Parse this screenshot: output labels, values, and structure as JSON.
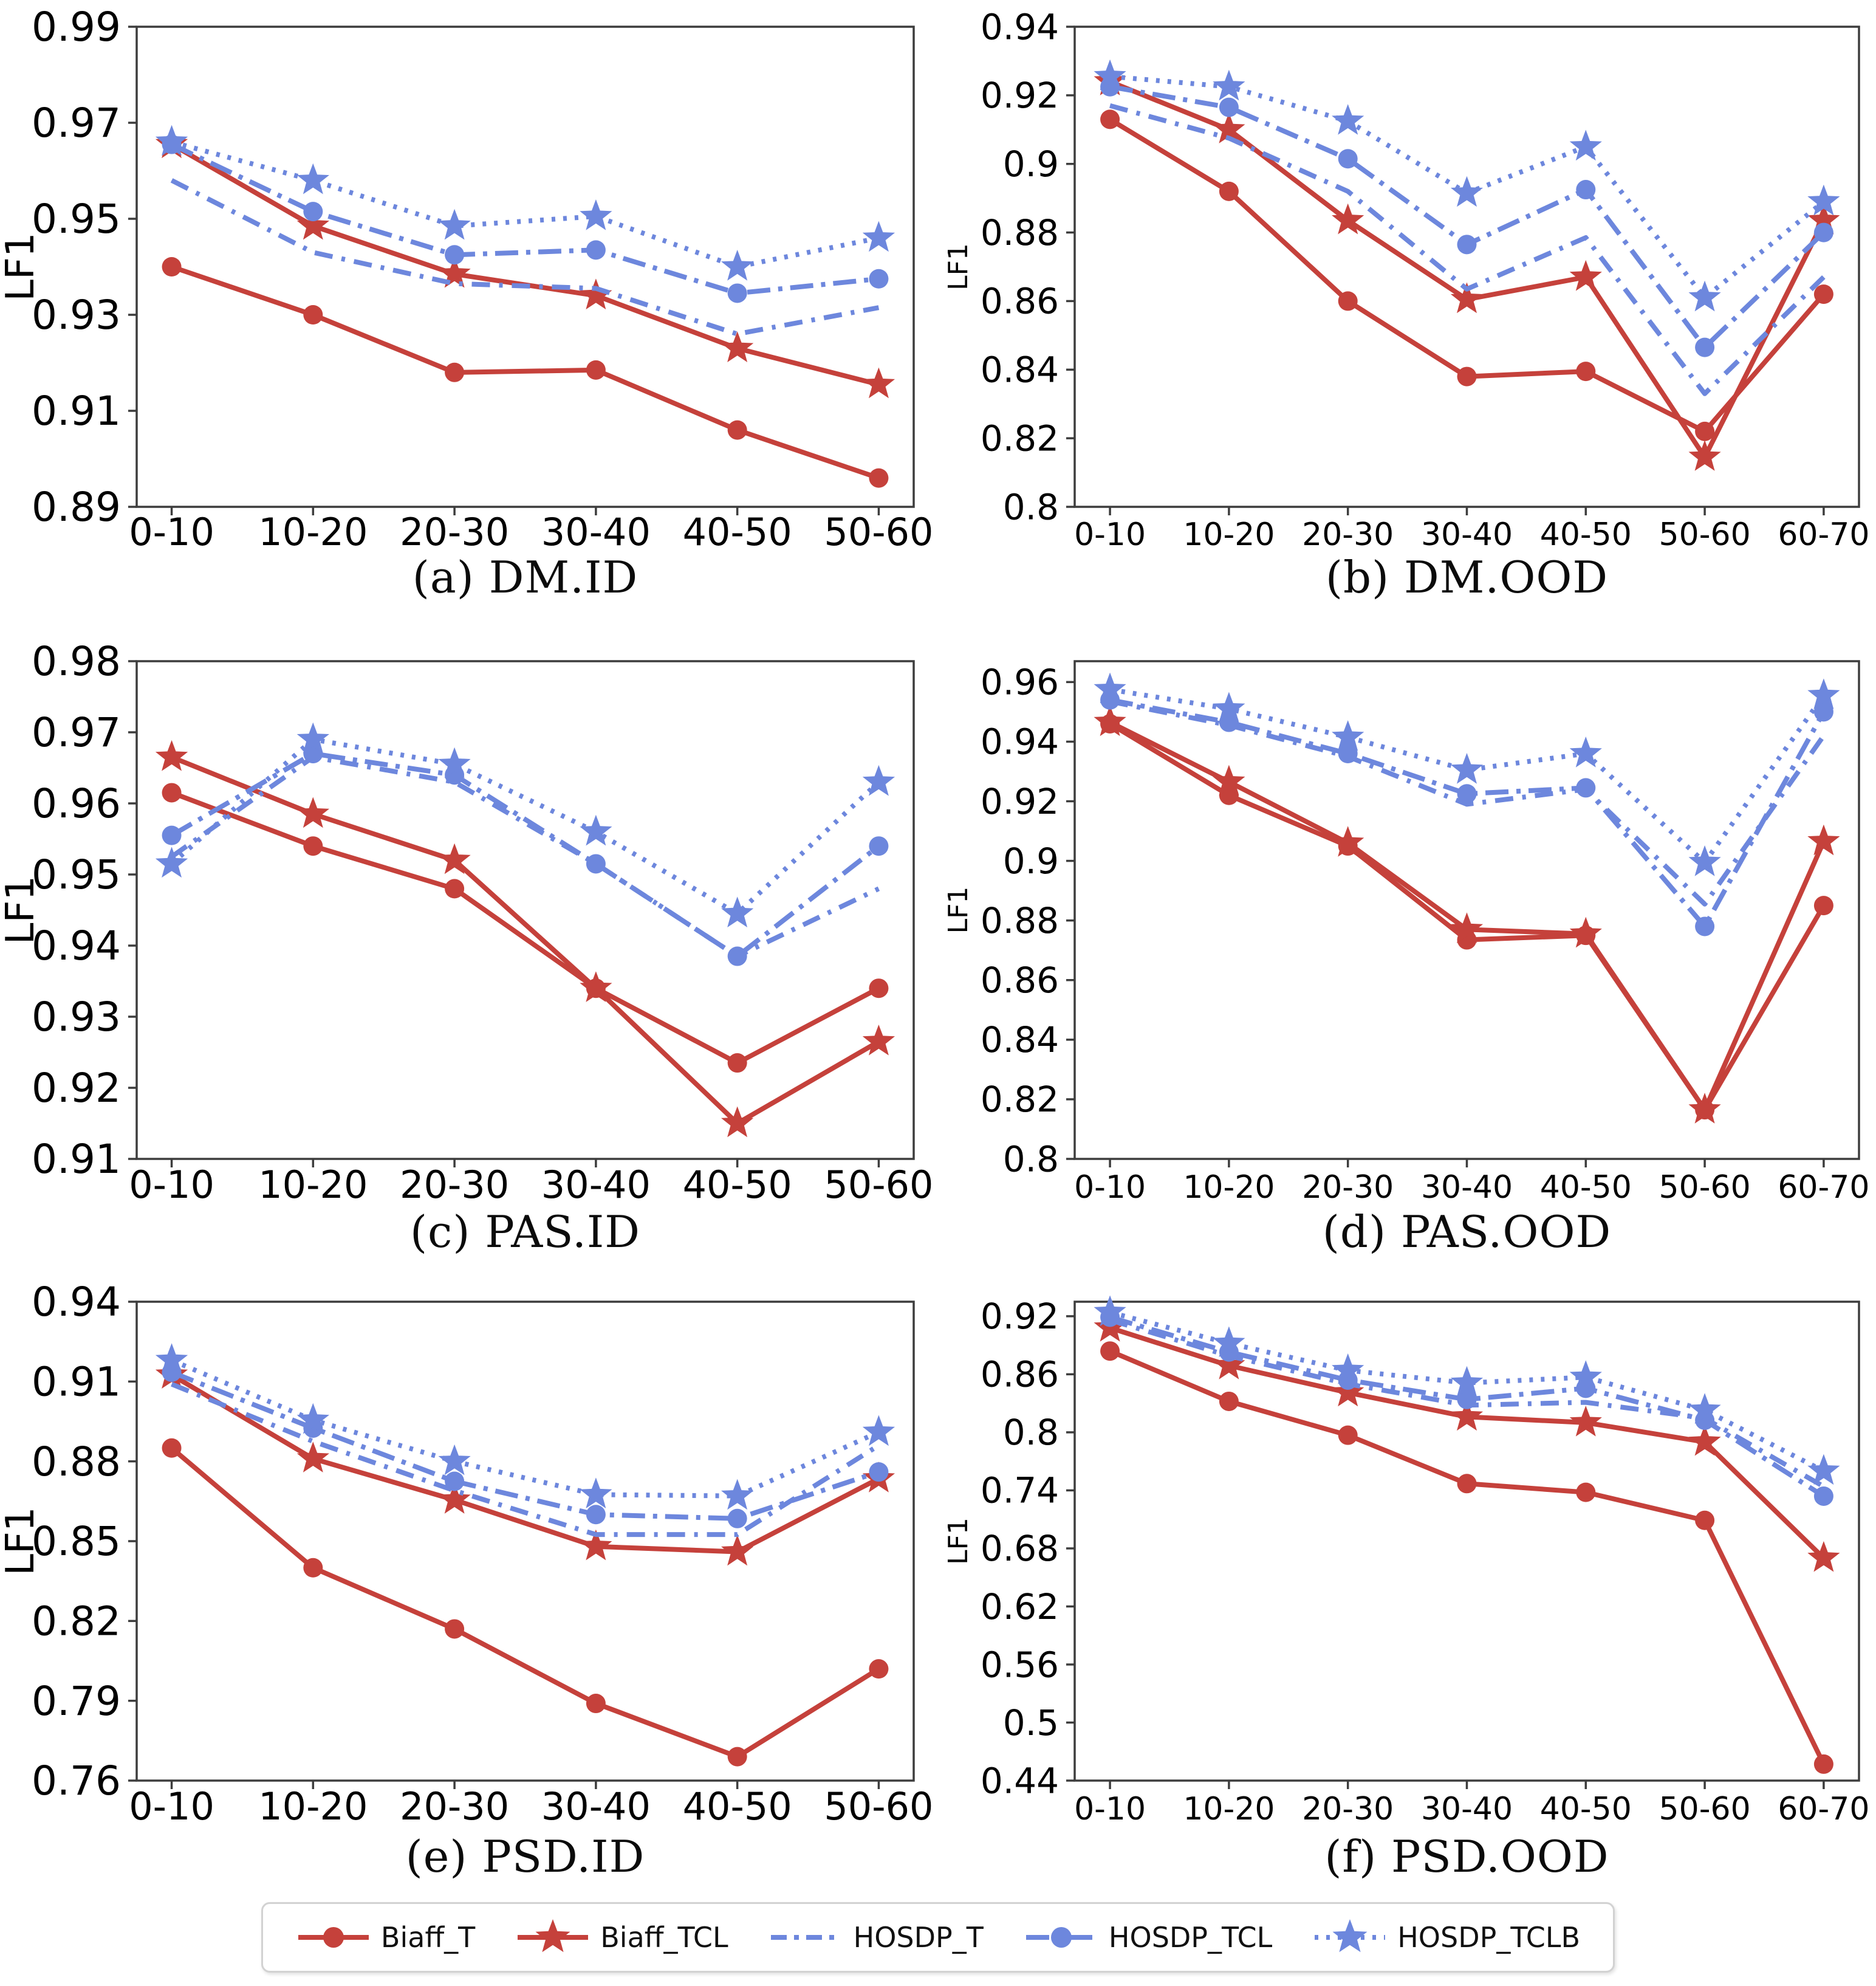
{
  "figure": {
    "ylabel": "LF1",
    "background": "#ffffff",
    "axis_color": "#3d3d3d",
    "red": "#c5413b",
    "blue": "#6d87dd",
    "series_styles": [
      {
        "name": "Biaff_T",
        "color": "#c5413b",
        "marker": "circle",
        "dash": "solid"
      },
      {
        "name": "Biaff_TCL",
        "color": "#c5413b",
        "marker": "star",
        "dash": "solid"
      },
      {
        "name": "HOSDP_T",
        "color": "#6d87dd",
        "marker": "none",
        "dash": "dashdot"
      },
      {
        "name": "HOSDP_TCL",
        "color": "#6d87dd",
        "marker": "circle",
        "dash": "dashdot2"
      },
      {
        "name": "HOSDP_TCLB",
        "color": "#6d87dd",
        "marker": "star",
        "dash": "dotted"
      }
    ]
  },
  "chart_data": [
    {
      "type": "line",
      "caption": "(a) DM.ID",
      "ylabel": "LF1",
      "categories": [
        "0-10",
        "10-20",
        "20-30",
        "30-40",
        "40-50",
        "50-60"
      ],
      "yticks": [
        0.89,
        0.91,
        0.93,
        0.95,
        0.97,
        0.99
      ],
      "ylim": [
        0.89,
        0.99
      ],
      "series": [
        {
          "name": "Biaff_T",
          "values": [
            0.94,
            0.93,
            0.918,
            0.9185,
            0.906,
            0.896
          ]
        },
        {
          "name": "Biaff_TCL",
          "values": [
            0.9655,
            0.9485,
            0.9385,
            0.934,
            0.923,
            0.9155
          ]
        },
        {
          "name": "HOSDP_T",
          "values": [
            0.958,
            0.943,
            0.9365,
            0.9355,
            0.926,
            0.9315
          ]
        },
        {
          "name": "HOSDP_TCL",
          "values": [
            0.9655,
            0.9515,
            0.9425,
            0.9435,
            0.9345,
            0.9375
          ]
        },
        {
          "name": "HOSDP_TCLB",
          "values": [
            0.966,
            0.958,
            0.9485,
            0.9505,
            0.94,
            0.946
          ]
        }
      ]
    },
    {
      "type": "line",
      "caption": "(b) DM.OOD",
      "ylabel": "LF1",
      "categories": [
        "0-10",
        "10-20",
        "20-30",
        "30-40",
        "40-50",
        "50-60",
        "60-70"
      ],
      "yticks": [
        0.8,
        0.82,
        0.84,
        0.86,
        0.88,
        0.9,
        0.92,
        0.94
      ],
      "ylim": [
        0.8,
        0.94
      ],
      "series": [
        {
          "name": "Biaff_T",
          "values": [
            0.913,
            0.892,
            0.86,
            0.838,
            0.8395,
            0.822,
            0.862
          ]
        },
        {
          "name": "Biaff_TCL",
          "values": [
            0.924,
            0.91,
            0.8835,
            0.8605,
            0.867,
            0.8145,
            0.8835
          ]
        },
        {
          "name": "HOSDP_T",
          "values": [
            0.917,
            0.9075,
            0.892,
            0.8635,
            0.8785,
            0.833,
            0.867
          ]
        },
        {
          "name": "HOSDP_TCL",
          "values": [
            0.9225,
            0.9165,
            0.9015,
            0.8765,
            0.8925,
            0.8465,
            0.88
          ]
        },
        {
          "name": "HOSDP_TCLB",
          "values": [
            0.9255,
            0.9225,
            0.9125,
            0.8915,
            0.905,
            0.861,
            0.889
          ]
        }
      ]
    },
    {
      "type": "line",
      "caption": "(c) PAS.ID",
      "ylabel": "LF1",
      "categories": [
        "0-10",
        "10-20",
        "20-30",
        "30-40",
        "40-50",
        "50-60"
      ],
      "yticks": [
        0.91,
        0.92,
        0.93,
        0.94,
        0.95,
        0.96,
        0.97,
        0.98
      ],
      "ylim": [
        0.91,
        0.98
      ],
      "series": [
        {
          "name": "Biaff_T",
          "values": [
            0.9615,
            0.954,
            0.948,
            0.934,
            0.9235,
            0.934
          ]
        },
        {
          "name": "Biaff_TCL",
          "values": [
            0.9665,
            0.9585,
            0.952,
            0.934,
            0.915,
            0.9265
          ]
        },
        {
          "name": "HOSDP_T",
          "values": [
            0.9525,
            0.9665,
            0.963,
            0.9515,
            0.9385,
            0.948
          ]
        },
        {
          "name": "HOSDP_TCL",
          "values": [
            0.9555,
            0.967,
            0.964,
            0.9515,
            0.9385,
            0.954
          ]
        },
        {
          "name": "HOSDP_TCLB",
          "values": [
            0.9515,
            0.969,
            0.9655,
            0.956,
            0.9445,
            0.963
          ]
        }
      ]
    },
    {
      "type": "line",
      "caption": "(d) PAS.OOD",
      "ylabel": "LF1",
      "categories": [
        "0-10",
        "10-20",
        "20-30",
        "30-40",
        "40-50",
        "50-60",
        "60-70"
      ],
      "yticks": [
        0.8,
        0.82,
        0.84,
        0.86,
        0.88,
        0.9,
        0.92,
        0.94,
        0.96
      ],
      "ylim": [
        0.8,
        0.967
      ],
      "series": [
        {
          "name": "Biaff_T",
          "values": [
            0.946,
            0.922,
            0.905,
            0.8735,
            0.875,
            0.8165,
            0.885
          ]
        },
        {
          "name": "Biaff_TCL",
          "values": [
            0.9465,
            0.9265,
            0.906,
            0.877,
            0.8755,
            0.8165,
            0.9065
          ]
        },
        {
          "name": "HOSDP_T",
          "values": [
            0.9535,
            0.9455,
            0.935,
            0.919,
            0.924,
            0.8855,
            0.942
          ]
        },
        {
          "name": "HOSDP_TCL",
          "values": [
            0.954,
            0.9465,
            0.936,
            0.9225,
            0.9245,
            0.878,
            0.95
          ]
        },
        {
          "name": "HOSDP_TCLB",
          "values": [
            0.9575,
            0.951,
            0.9415,
            0.9305,
            0.936,
            0.8995,
            0.9555
          ]
        }
      ]
    },
    {
      "type": "line",
      "caption": "(e) PSD.ID",
      "ylabel": "LF1",
      "categories": [
        "0-10",
        "10-20",
        "20-30",
        "30-40",
        "40-50",
        "50-60"
      ],
      "yticks": [
        0.76,
        0.79,
        0.82,
        0.85,
        0.88,
        0.91,
        0.94
      ],
      "ylim": [
        0.76,
        0.94
      ],
      "series": [
        {
          "name": "Biaff_T",
          "values": [
            0.885,
            0.84,
            0.817,
            0.789,
            0.769,
            0.802
          ]
        },
        {
          "name": "Biaff_TCL",
          "values": [
            0.9125,
            0.881,
            0.8655,
            0.848,
            0.846,
            0.8735
          ]
        },
        {
          "name": "HOSDP_T",
          "values": [
            0.909,
            0.8875,
            0.869,
            0.8525,
            0.8525,
            0.886
          ]
        },
        {
          "name": "HOSDP_TCL",
          "values": [
            0.9135,
            0.8925,
            0.8725,
            0.86,
            0.8585,
            0.876
          ]
        },
        {
          "name": "HOSDP_TCLB",
          "values": [
            0.918,
            0.8955,
            0.88,
            0.8675,
            0.867,
            0.891
          ]
        }
      ]
    },
    {
      "type": "line",
      "caption": "(f) PSD.OOD",
      "ylabel": "LF1",
      "categories": [
        "0-10",
        "10-20",
        "20-30",
        "30-40",
        "40-50",
        "50-60",
        "60-70"
      ],
      "yticks": [
        0.44,
        0.5,
        0.56,
        0.62,
        0.68,
        0.74,
        0.8,
        0.86,
        0.92
      ],
      "ylim": [
        0.44,
        0.935
      ],
      "series": [
        {
          "name": "Biaff_T",
          "values": [
            0.884,
            0.832,
            0.797,
            0.747,
            0.738,
            0.709,
            0.457
          ]
        },
        {
          "name": "Biaff_TCL",
          "values": [
            0.908,
            0.869,
            0.841,
            0.816,
            0.81,
            0.79,
            0.67
          ]
        },
        {
          "name": "HOSDP_T",
          "values": [
            0.916,
            0.879,
            0.85,
            0.828,
            0.831,
            0.8145,
            0.744
          ]
        },
        {
          "name": "HOSDP_TCL",
          "values": [
            0.919,
            0.883,
            0.854,
            0.834,
            0.8455,
            0.8125,
            0.734
          ]
        },
        {
          "name": "HOSDP_TCLB",
          "values": [
            0.924,
            0.892,
            0.864,
            0.851,
            0.857,
            0.823,
            0.76
          ]
        }
      ]
    }
  ]
}
